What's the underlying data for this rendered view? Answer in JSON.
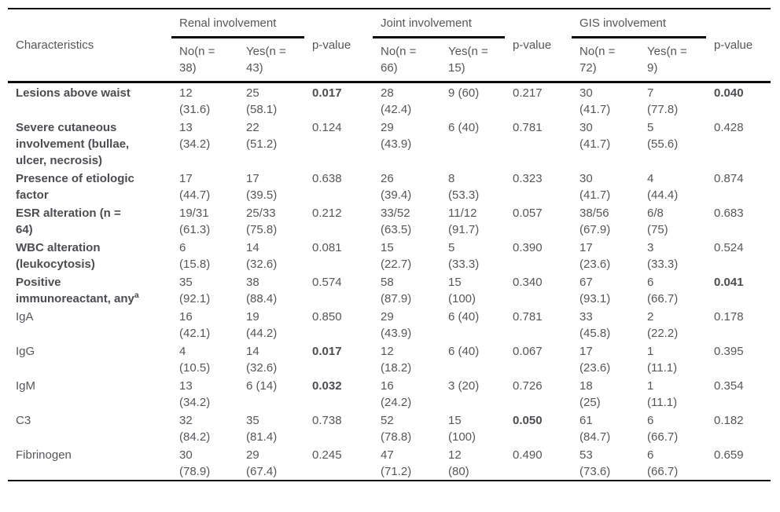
{
  "table": {
    "char_header": "Characteristics",
    "pvalue_label": "p-value",
    "groups": [
      {
        "label": "Renal involvement",
        "no": "No(n = 38)",
        "yes": "Yes(n = 43)"
      },
      {
        "label": "Joint involvement",
        "no": "No(n = 66)",
        "yes": "Yes(n = 15)"
      },
      {
        "label": "GIS involvement",
        "no": "No(n = 72)",
        "yes": "Yes(n = 9)"
      }
    ],
    "rows": [
      {
        "label": "Lesions above waist",
        "bold": true,
        "cells": [
          "12 (31.6)",
          "25 (58.1)",
          "0.017",
          "28 (42.4)",
          "9 (60)",
          "0.217",
          "30 (41.7)",
          "7 (77.8)",
          "0.040"
        ],
        "p_bold": [
          true,
          false,
          true
        ]
      },
      {
        "label": "Severe cutaneous involvement (bullae, ulcer, necrosis)",
        "bold": true,
        "cells": [
          "13 (34.2)",
          "22 (51.2)",
          "0.124",
          "29 (43.9)",
          "6 (40)",
          "0.781",
          "30 (41.7)",
          "5 (55.6)",
          "0.428"
        ],
        "p_bold": [
          false,
          false,
          false
        ]
      },
      {
        "label": "Presence of etiologic factor",
        "bold": true,
        "cells": [
          "17 (44.7)",
          "17 (39.5)",
          "0.638",
          "26 (39.4)",
          "8 (53.3)",
          "0.323",
          "30 (41.7)",
          "4 (44.4)",
          "0.874"
        ],
        "p_bold": [
          false,
          false,
          false
        ]
      },
      {
        "label": "ESR alteration (n = 64)",
        "bold": true,
        "cells": [
          "19/31 (61.3)",
          "25/33 (75.8)",
          "0.212",
          "33/52 (63.5)",
          "11/12 (91.7)",
          "0.057",
          "38/56 (67.9)",
          "6/8 (75)",
          "0.683"
        ],
        "p_bold": [
          false,
          false,
          false
        ]
      },
      {
        "label": "WBC alteration (leukocytosis)",
        "bold": true,
        "cells": [
          "6 (15.8)",
          "14 (32.6)",
          "0.081",
          "15 (22.7)",
          "5 (33.3)",
          "0.390",
          "17 (23.6)",
          "3 (33.3)",
          "0.524"
        ],
        "p_bold": [
          false,
          false,
          false
        ]
      },
      {
        "label": "Positive immunoreactant, any",
        "bold": true,
        "sup": "a",
        "cells": [
          "35 (92.1)",
          "38 (88.4)",
          "0.574",
          "58 (87.9)",
          "15 (100)",
          "0.340",
          "67 (93.1)",
          "6 (66.7)",
          "0.041"
        ],
        "p_bold": [
          false,
          false,
          true
        ]
      },
      {
        "label": "IgA",
        "bold": false,
        "cells": [
          "16 (42.1)",
          "19 (44.2)",
          "0.850",
          "29 (43.9)",
          "6 (40)",
          "0.781",
          "33 (45.8)",
          "2 (22.2)",
          "0.178"
        ],
        "p_bold": [
          false,
          false,
          false
        ]
      },
      {
        "label": "IgG",
        "bold": false,
        "cells": [
          "4 (10.5)",
          "14 (32.6)",
          "0.017",
          "12 (18.2)",
          "6 (40)",
          "0.067",
          "17 (23.6)",
          "1 (11.1)",
          "0.395"
        ],
        "p_bold": [
          true,
          false,
          false
        ]
      },
      {
        "label": "IgM",
        "bold": false,
        "cells": [
          "13 (34.2)",
          "6 (14)",
          "0.032",
          "16 (24.2)",
          "3 (20)",
          "0.726",
          "18 (25)",
          "1 (11.1)",
          "0.354"
        ],
        "p_bold": [
          true,
          false,
          false
        ]
      },
      {
        "label": "C3",
        "bold": false,
        "cells": [
          "32 (84.2)",
          "35 (81.4)",
          "0.738",
          "52 (78.8)",
          "15 (100)",
          "0.050",
          "61 (84.7)",
          "6 (66.7)",
          "0.182"
        ],
        "p_bold": [
          false,
          true,
          false
        ]
      },
      {
        "label": "Fibrinogen",
        "bold": false,
        "cells": [
          "30 (78.9)",
          "29 (67.4)",
          "0.245",
          "47 (71.2)",
          "12 (80)",
          "0.490",
          "53 (73.6)",
          "6 (66.7)",
          "0.659"
        ],
        "p_bold": [
          false,
          false,
          false
        ]
      }
    ]
  }
}
